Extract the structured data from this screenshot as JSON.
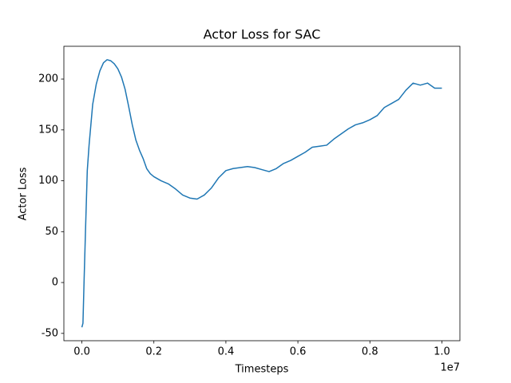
{
  "chart_data": {
    "type": "line",
    "title": "Actor Loss for SAC",
    "x_label": "Timesteps",
    "y_label": "Actor Loss",
    "x_offset_label": "1e7",
    "x": [
      0,
      30000,
      60000,
      100000,
      150000,
      200000,
      300000,
      400000,
      500000,
      600000,
      700000,
      800000,
      900000,
      1000000,
      1100000,
      1200000,
      1300000,
      1400000,
      1500000,
      1600000,
      1700000,
      1800000,
      1900000,
      2000000,
      2200000,
      2400000,
      2600000,
      2800000,
      3000000,
      3200000,
      3400000,
      3600000,
      3800000,
      4000000,
      4200000,
      4400000,
      4600000,
      4800000,
      5000000,
      5200000,
      5400000,
      5600000,
      5800000,
      6000000,
      6200000,
      6400000,
      6600000,
      6800000,
      7000000,
      7200000,
      7400000,
      7600000,
      7800000,
      8000000,
      8200000,
      8400000,
      8600000,
      8800000,
      9000000,
      9200000,
      9400000,
      9600000,
      9800000,
      10000000
    ],
    "series": [
      {
        "name": "Actor Loss",
        "color": "#1f77b4",
        "values": [
          -44,
          -40,
          0,
          50,
          110,
          135,
          175,
          195,
          208,
          216,
          219,
          218,
          215,
          210,
          202,
          190,
          173,
          155,
          140,
          130,
          122,
          112,
          107,
          104,
          100,
          97,
          92,
          86,
          83,
          82,
          86,
          93,
          103,
          110,
          112,
          113,
          114,
          113,
          111,
          109,
          112,
          117,
          120,
          124,
          128,
          133,
          134,
          135,
          141,
          146,
          151,
          155,
          157,
          160,
          164,
          172,
          176,
          180,
          189,
          196,
          194,
          196,
          191,
          191
        ]
      }
    ],
    "xlim": [
      -500000,
      10500000
    ],
    "ylim": [
      -57.2,
      232.2
    ],
    "xticks": [
      {
        "value": 0,
        "label": "0.0"
      },
      {
        "value": 2000000,
        "label": "0.2"
      },
      {
        "value": 4000000,
        "label": "0.4"
      },
      {
        "value": 6000000,
        "label": "0.6"
      },
      {
        "value": 8000000,
        "label": "0.8"
      },
      {
        "value": 10000000,
        "label": "1.0"
      }
    ],
    "yticks": [
      -50,
      0,
      50,
      100,
      150,
      200
    ],
    "grid": false
  }
}
